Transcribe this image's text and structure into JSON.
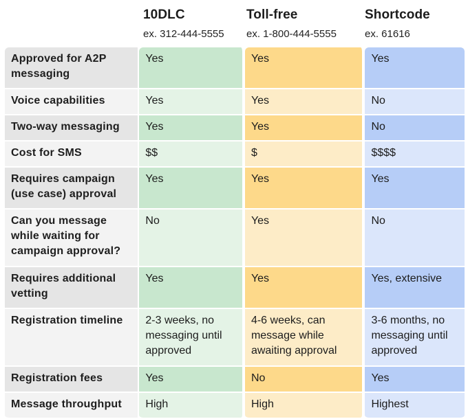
{
  "columns": [
    {
      "name": "10DLC",
      "example": "ex. 312-444-5555"
    },
    {
      "name": "Toll-free",
      "example": "ex. 1-800-444-5555"
    },
    {
      "name": "Shortcode",
      "example": "ex. 61616"
    }
  ],
  "rows": [
    {
      "label": "Approved for A2P messaging",
      "values": [
        "Yes",
        "Yes",
        "Yes"
      ]
    },
    {
      "label": "Voice capabilities",
      "values": [
        "Yes",
        "Yes",
        "No"
      ]
    },
    {
      "label": "Two-way messaging",
      "values": [
        "Yes",
        "Yes",
        "No"
      ]
    },
    {
      "label": "Cost for SMS",
      "values": [
        "$$",
        "$",
        "$$$$"
      ]
    },
    {
      "label": "Requires campaign (use case) approval",
      "values": [
        "Yes",
        "Yes",
        "Yes"
      ]
    },
    {
      "label": "Can you message while waiting for campaign approval?",
      "values": [
        "No",
        "Yes",
        "No"
      ]
    },
    {
      "label": "Requires additional vetting",
      "values": [
        "Yes",
        "Yes",
        "Yes, extensive"
      ]
    },
    {
      "label": "Registration timeline",
      "values": [
        "2-3 weeks, no messaging until approved",
        "4-6 weeks, can message while awaiting approval",
        "3-6 months, no messaging until approved"
      ]
    },
    {
      "label": "Registration fees",
      "values": [
        "Yes",
        "No",
        "Yes"
      ]
    },
    {
      "label": "Message throughput",
      "values": [
        "High",
        "High",
        "Highest"
      ]
    }
  ],
  "colors": {
    "label_dark": "#e5e5e5",
    "label_light": "#f3f3f3",
    "green_dark": "#c8e7ce",
    "green_light": "#e4f3e6",
    "yellow_dark": "#fdd98a",
    "yellow_light": "#fdecc7",
    "blue_dark": "#b6cdf7",
    "blue_light": "#dbe6fb"
  }
}
